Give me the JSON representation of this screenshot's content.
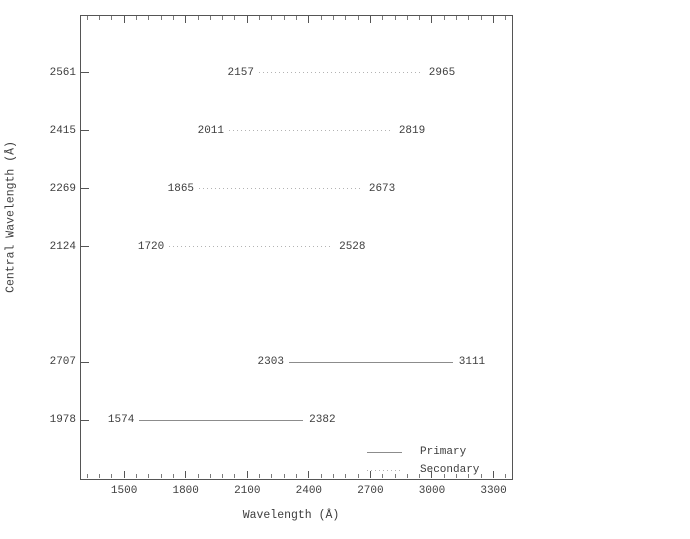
{
  "chart_data": {
    "type": "line",
    "description": "Horizontal wavelength-range segments per grating central wavelength",
    "xlabel": "Wavelength (Å)",
    "ylabel": "Central Wavelength (Å)",
    "xlim": [
      1285,
      3385
    ],
    "x_major_ticks": [
      1500,
      1800,
      2100,
      2400,
      2700,
      3000,
      3300
    ],
    "x_minor_tick_step": 60,
    "grid": false,
    "row_slot_count": 8,
    "legend_position": "bottom-right-inside",
    "legend": [
      {
        "label": "Primary",
        "style": "solid"
      },
      {
        "label": "Secondary",
        "style": "dotted"
      }
    ],
    "series": [
      {
        "central_wavelength": "2561",
        "start": 2157,
        "end": 2965,
        "style": "secondary",
        "row_slot": 1
      },
      {
        "central_wavelength": "2415",
        "start": 2011,
        "end": 2819,
        "style": "secondary",
        "row_slot": 2
      },
      {
        "central_wavelength": "2269",
        "start": 1865,
        "end": 2673,
        "style": "secondary",
        "row_slot": 3
      },
      {
        "central_wavelength": "2124",
        "start": 1720,
        "end": 2528,
        "style": "secondary",
        "row_slot": 4
      },
      {
        "central_wavelength": "2707",
        "start": 2303,
        "end": 3111,
        "style": "primary",
        "row_slot": 6
      },
      {
        "central_wavelength": "1978",
        "start": 1574,
        "end": 2382,
        "style": "primary",
        "row_slot": 7
      }
    ],
    "colors": {
      "axis": "#555555",
      "text": "#3d3d3d",
      "primary_line": "#8c8c8c",
      "secondary_line": "#b3b3b3",
      "background": "#ffffff"
    }
  }
}
